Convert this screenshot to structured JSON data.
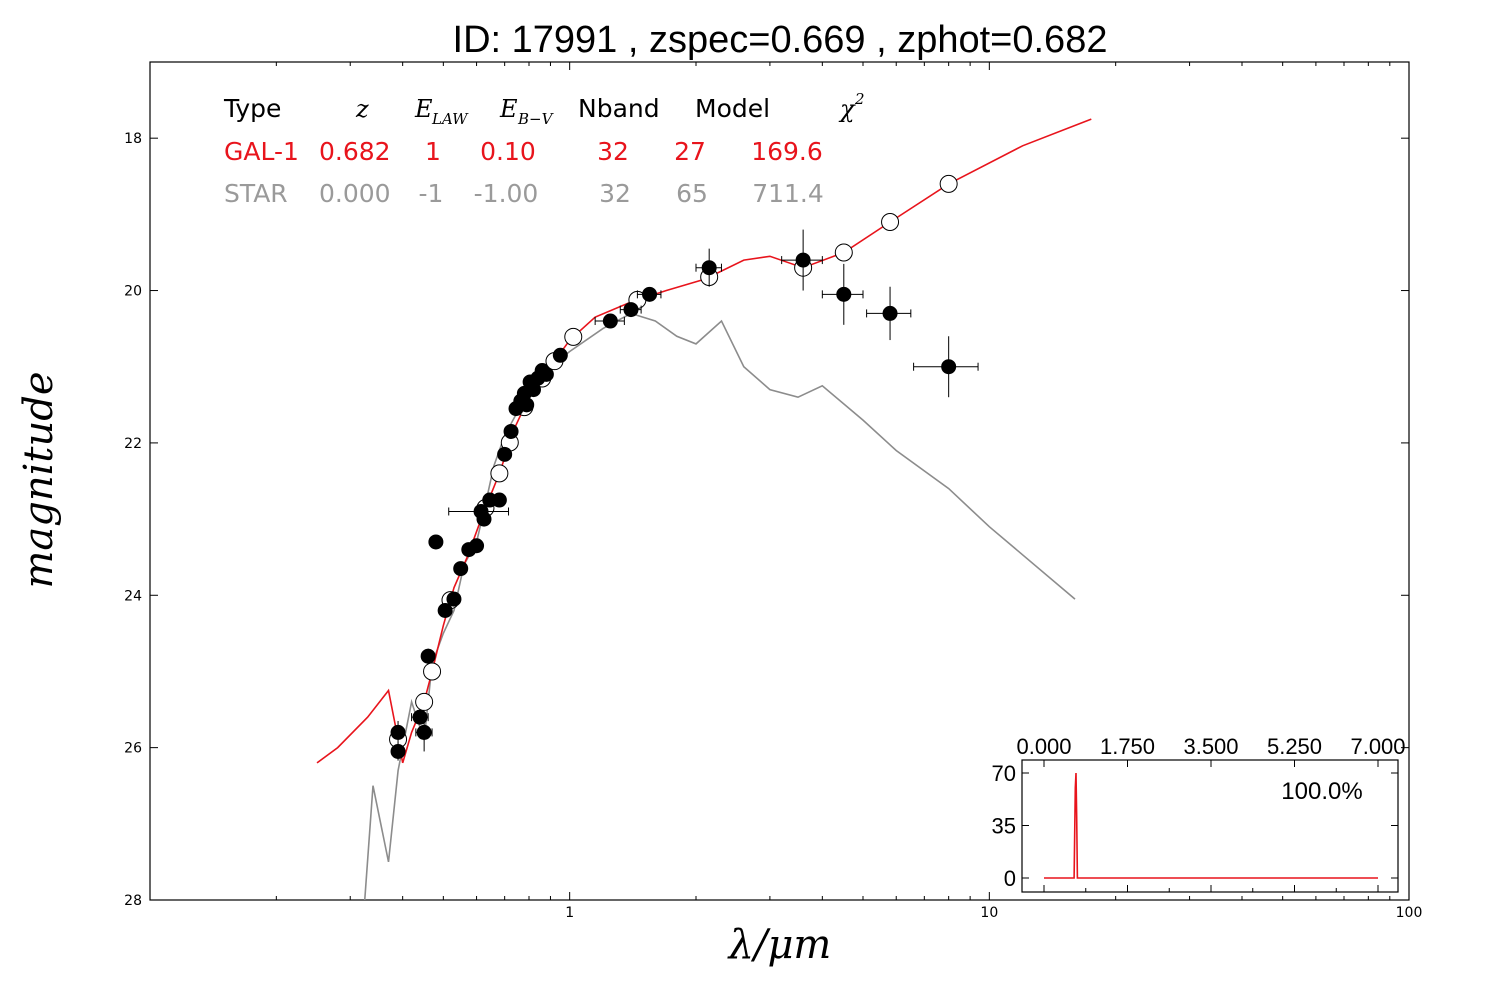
{
  "title": "ID:  17991 , zspec=0.669 , zphot=0.682",
  "colors": {
    "galaxy": "#e8141c",
    "star": "#8c8c8c",
    "star_text": "#9a9a9a",
    "axis": "#000000"
  },
  "table": {
    "headers": {
      "type": "Type",
      "z": "z",
      "elaw": "E",
      "elaw_sub": "LAW",
      "ebv": "E",
      "ebv_sub": "B−V",
      "nband": "Nband",
      "model": "Model",
      "chi": "χ",
      "chi_sup": "2"
    },
    "rows": [
      {
        "type": "GAL-1",
        "z": "0.682",
        "elaw": "1",
        "ebv": "0.10",
        "nband": "32",
        "model": "27",
        "chi2": "169.6"
      },
      {
        "type": "STAR",
        "z": "0.000",
        "elaw": "-1",
        "ebv": "-1.00",
        "nband": "32",
        "model": "65",
        "chi2": "711.4"
      }
    ]
  },
  "chart_data": {
    "type": "scatter",
    "xlabel": "λ/μm",
    "ylabel": "magnitude",
    "x_scale": "log",
    "xlim": [
      0.1,
      100
    ],
    "ylim": [
      28,
      17
    ],
    "x_ticks": [
      "1",
      "10",
      "100"
    ],
    "y_ticks": [
      "18",
      "20",
      "22",
      "24",
      "26",
      "28"
    ],
    "observed": [
      {
        "x": 0.39,
        "y": 25.8,
        "xerr": 0.006,
        "yerr": 0.15
      },
      {
        "x": 0.39,
        "y": 26.05,
        "xerr": 0.005,
        "yerr": 0.12
      },
      {
        "x": 0.44,
        "y": 25.6,
        "xerr": 0.02,
        "yerr": 0.1
      },
      {
        "x": 0.45,
        "y": 25.8,
        "xerr": 0.02,
        "yerr": 0.25
      },
      {
        "x": 0.46,
        "y": 24.8,
        "xerr": 0.01,
        "yerr": 0.1
      },
      {
        "x": 0.48,
        "y": 23.3,
        "xerr": 0.01,
        "yerr": 0.06
      },
      {
        "x": 0.505,
        "y": 24.2,
        "xerr": 0.01,
        "yerr": 0.05
      },
      {
        "x": 0.53,
        "y": 24.05,
        "xerr": 0.01,
        "yerr": 0.05
      },
      {
        "x": 0.55,
        "y": 23.65,
        "xerr": 0.01,
        "yerr": 0.05
      },
      {
        "x": 0.575,
        "y": 23.4,
        "xerr": 0.01,
        "yerr": 0.05
      },
      {
        "x": 0.6,
        "y": 23.35,
        "xerr": 0.01,
        "yerr": 0.05
      },
      {
        "x": 0.615,
        "y": 22.9,
        "xerr": 0.1,
        "yerr": 0.05
      },
      {
        "x": 0.625,
        "y": 23.0,
        "xerr": 0.01,
        "yerr": 0.05
      },
      {
        "x": 0.645,
        "y": 22.75,
        "xerr": 0.01,
        "yerr": 0.05
      },
      {
        "x": 0.68,
        "y": 22.75,
        "xerr": 0.01,
        "yerr": 0.05
      },
      {
        "x": 0.7,
        "y": 22.15,
        "xerr": 0.01,
        "yerr": 0.05
      },
      {
        "x": 0.725,
        "y": 21.85,
        "xerr": 0.01,
        "yerr": 0.05
      },
      {
        "x": 0.745,
        "y": 21.55,
        "xerr": 0.01,
        "yerr": 0.05
      },
      {
        "x": 0.765,
        "y": 21.45,
        "xerr": 0.02,
        "yerr": 0.05
      },
      {
        "x": 0.78,
        "y": 21.35,
        "xerr": 0.02,
        "yerr": 0.05
      },
      {
        "x": 0.79,
        "y": 21.5,
        "xerr": 0.02,
        "yerr": 0.05
      },
      {
        "x": 0.805,
        "y": 21.2,
        "xerr": 0.02,
        "yerr": 0.05
      },
      {
        "x": 0.82,
        "y": 21.3,
        "xerr": 0.02,
        "yerr": 0.05
      },
      {
        "x": 0.84,
        "y": 21.15,
        "xerr": 0.02,
        "yerr": 0.05
      },
      {
        "x": 0.86,
        "y": 21.05,
        "xerr": 0.02,
        "yerr": 0.05
      },
      {
        "x": 0.88,
        "y": 21.1,
        "xerr": 0.02,
        "yerr": 0.05
      },
      {
        "x": 0.95,
        "y": 20.85,
        "xerr": 0.03,
        "yerr": 0.05
      },
      {
        "x": 1.25,
        "y": 20.4,
        "xerr": 0.1,
        "yerr": 0.05
      },
      {
        "x": 1.4,
        "y": 20.25,
        "xerr": 0.08,
        "yerr": 0.05
      },
      {
        "x": 1.55,
        "y": 20.05,
        "xerr": 0.1,
        "yerr": 0.05
      },
      {
        "x": 2.15,
        "y": 19.7,
        "xerr": 0.15,
        "yerr": 0.25
      },
      {
        "x": 3.6,
        "y": 19.6,
        "xerr": 0.4,
        "yerr": 0.4
      },
      {
        "x": 4.5,
        "y": 20.05,
        "xerr": 0.5,
        "yerr": 0.4
      },
      {
        "x": 5.8,
        "y": 20.3,
        "xerr": 0.7,
        "yerr": 0.35
      },
      {
        "x": 8.0,
        "y": 21.0,
        "xerr": 1.4,
        "yerr": 0.4
      }
    ],
    "model_galaxy": [
      {
        "x": 0.25,
        "y": 26.2
      },
      {
        "x": 0.28,
        "y": 26.0
      },
      {
        "x": 0.33,
        "y": 25.6
      },
      {
        "x": 0.37,
        "y": 25.25
      },
      {
        "x": 0.4,
        "y": 26.2
      },
      {
        "x": 0.42,
        "y": 25.8
      },
      {
        "x": 0.45,
        "y": 25.4
      },
      {
        "x": 0.47,
        "y": 25.0
      },
      {
        "x": 0.5,
        "y": 24.4
      },
      {
        "x": 0.53,
        "y": 23.9
      },
      {
        "x": 0.57,
        "y": 23.5
      },
      {
        "x": 0.62,
        "y": 22.95
      },
      {
        "x": 0.68,
        "y": 22.4
      },
      {
        "x": 0.74,
        "y": 21.8
      },
      {
        "x": 0.8,
        "y": 21.4
      },
      {
        "x": 0.9,
        "y": 21.0
      },
      {
        "x": 1.0,
        "y": 20.65
      },
      {
        "x": 1.15,
        "y": 20.35
      },
      {
        "x": 1.4,
        "y": 20.15
      },
      {
        "x": 1.7,
        "y": 20.0
      },
      {
        "x": 2.1,
        "y": 19.85
      },
      {
        "x": 2.6,
        "y": 19.6
      },
      {
        "x": 3.0,
        "y": 19.55
      },
      {
        "x": 3.6,
        "y": 19.7
      },
      {
        "x": 4.5,
        "y": 19.5
      },
      {
        "x": 5.8,
        "y": 19.1
      },
      {
        "x": 8.0,
        "y": 18.6
      },
      {
        "x": 12.0,
        "y": 18.1
      },
      {
        "x": 17.5,
        "y": 17.75
      }
    ],
    "model_star": [
      {
        "x": 0.32,
        "y": 28.5
      },
      {
        "x": 0.34,
        "y": 26.5
      },
      {
        "x": 0.37,
        "y": 27.5
      },
      {
        "x": 0.39,
        "y": 26.3
      },
      {
        "x": 0.42,
        "y": 25.4
      },
      {
        "x": 0.45,
        "y": 25.9
      },
      {
        "x": 0.47,
        "y": 24.9
      },
      {
        "x": 0.5,
        "y": 24.5
      },
      {
        "x": 0.53,
        "y": 24.2
      },
      {
        "x": 0.56,
        "y": 23.6
      },
      {
        "x": 0.6,
        "y": 23.3
      },
      {
        "x": 0.63,
        "y": 22.8
      },
      {
        "x": 0.66,
        "y": 22.3
      },
      {
        "x": 0.7,
        "y": 21.9
      },
      {
        "x": 0.75,
        "y": 21.6
      },
      {
        "x": 0.8,
        "y": 21.3
      },
      {
        "x": 0.9,
        "y": 21.0
      },
      {
        "x": 1.0,
        "y": 20.8
      },
      {
        "x": 1.2,
        "y": 20.5
      },
      {
        "x": 1.4,
        "y": 20.3
      },
      {
        "x": 1.6,
        "y": 20.4
      },
      {
        "x": 1.8,
        "y": 20.6
      },
      {
        "x": 2.0,
        "y": 20.7
      },
      {
        "x": 2.3,
        "y": 20.4
      },
      {
        "x": 2.6,
        "y": 21.0
      },
      {
        "x": 3.0,
        "y": 21.3
      },
      {
        "x": 3.5,
        "y": 21.4
      },
      {
        "x": 4.0,
        "y": 21.25
      },
      {
        "x": 5.0,
        "y": 21.7
      },
      {
        "x": 6.0,
        "y": 22.1
      },
      {
        "x": 8.0,
        "y": 22.6
      },
      {
        "x": 10.0,
        "y": 23.1
      },
      {
        "x": 16.0,
        "y": 24.05
      }
    ],
    "inset": {
      "type": "line",
      "xlim": [
        0.0,
        7.0
      ],
      "ylim": [
        0,
        75
      ],
      "x_ticks": [
        "0.000",
        "1.750",
        "3.500",
        "5.250",
        "7.000"
      ],
      "y_ticks": [
        "0",
        "35",
        "70"
      ],
      "annotation": "100.0%",
      "pdf": [
        {
          "x": 0.0,
          "y": 0
        },
        {
          "x": 0.63,
          "y": 0
        },
        {
          "x": 0.655,
          "y": 60
        },
        {
          "x": 0.67,
          "y": 70
        },
        {
          "x": 0.685,
          "y": 40
        },
        {
          "x": 0.7,
          "y": 0
        },
        {
          "x": 7.0,
          "y": 0
        }
      ]
    }
  }
}
